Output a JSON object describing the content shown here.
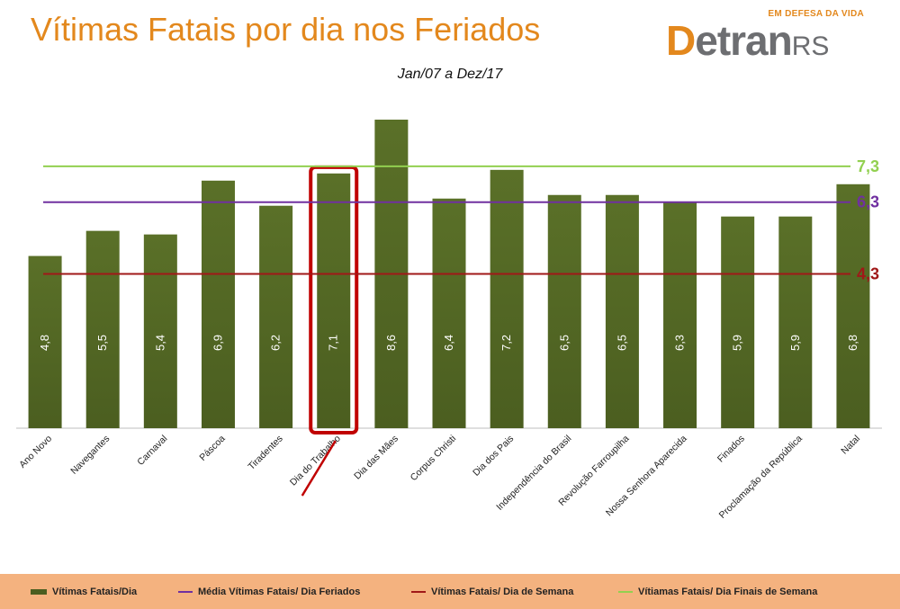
{
  "title": "Vítimas Fatais por dia nos Feriados",
  "subtitle": "Jan/07 a Dez/17",
  "logo": {
    "tagline": "EM DEFESA DA VIDA",
    "brand_d": "D",
    "brand_rest": "etran",
    "brand_rs": "RS"
  },
  "colors": {
    "bar": "#4b5e20",
    "bar_top": "#5a7028",
    "highlight": "#c00000",
    "title": "#e3881d"
  },
  "chart_data": {
    "type": "bar",
    "categories": [
      "Ano Novo",
      "Navegantes",
      "Carnaval",
      "Páscoa",
      "Tiradentes",
      "Dia do Trabalho",
      "Dia das Mães",
      "Corpus Christi",
      "Dia dos Pais",
      "Independência do Brasil",
      "Revolução Farroupilha",
      "Nossa Senhora Aparecida",
      "Finados",
      "Proclamação da República",
      "Natal"
    ],
    "series": [
      {
        "name": "Vítimas Fatais/Dia",
        "values": [
          4.8,
          5.5,
          5.4,
          6.9,
          6.2,
          7.1,
          8.6,
          6.4,
          7.2,
          6.5,
          6.5,
          6.3,
          5.9,
          5.9,
          6.8
        ],
        "labels": [
          "4,8",
          "5,5",
          "5,4",
          "6,9",
          "6,2",
          "7,1",
          "8,6",
          "6,4",
          "7,2",
          "6,5",
          "6,5",
          "6,3",
          "5,9",
          "5,9",
          "6,8"
        ],
        "color": "#4b5e20"
      }
    ],
    "reference_lines": [
      {
        "name": "Média Vítimas Fatais/ Dia Feriados",
        "value": 6.3,
        "label": "6,3",
        "color": "#7030a0"
      },
      {
        "name": "Vítimas Fatais/ Dia de Semana",
        "value": 4.3,
        "label": "4,3",
        "color": "#a01818"
      },
      {
        "name": "Vítiamas Fatais/ Dia Finais de Semana",
        "value": 7.3,
        "label": "7,3",
        "color": "#92d050"
      }
    ],
    "highlighted_category": "Dia do Trabalho",
    "ylim": [
      0,
      8.6
    ],
    "grid": false,
    "legend_position": "bottom"
  }
}
